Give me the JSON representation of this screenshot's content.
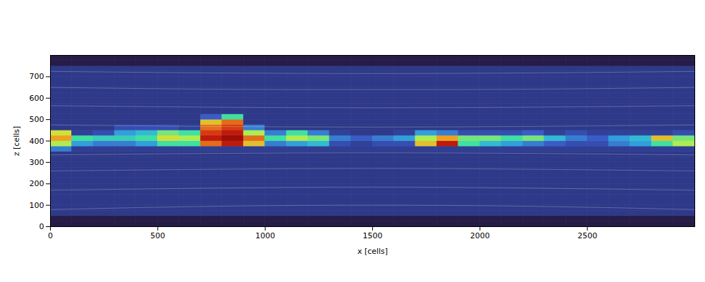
{
  "chart_data": {
    "type": "heatmap",
    "xlabel": "x [cells]",
    "ylabel": "z [cells]",
    "xlim": [
      0,
      3000
    ],
    "ylim": [
      0,
      800
    ],
    "xticks": [
      0,
      500,
      1000,
      1500,
      2000,
      2500
    ],
    "yticks": [
      0,
      100,
      200,
      300,
      400,
      500,
      600,
      700
    ],
    "color_range": [
      0,
      1
    ],
    "x_edges": [
      0,
      100,
      200,
      300,
      400,
      500,
      600,
      700,
      800,
      900,
      1000,
      1100,
      1200,
      1300,
      1400,
      1500,
      1600,
      1700,
      1800,
      1900,
      2000,
      2100,
      2200,
      2300,
      2400,
      2500,
      2600,
      2700,
      2800,
      2900,
      3000
    ],
    "z_edges": [
      0,
      25,
      50,
      75,
      100,
      125,
      150,
      175,
      200,
      225,
      250,
      275,
      300,
      325,
      350,
      375,
      400,
      425,
      450,
      475,
      500,
      525,
      550,
      575,
      600,
      625,
      650,
      675,
      700,
      725,
      750,
      775,
      800
    ],
    "cells": [
      [
        0.02,
        0.02,
        0.02,
        0.02,
        0.02,
        0.02,
        0.02,
        0.02,
        0.02,
        0.02,
        0.02,
        0.02,
        0.02,
        0.02,
        0.02,
        0.02,
        0.02,
        0.02,
        0.02,
        0.02,
        0.02,
        0.02,
        0.02,
        0.02,
        0.02,
        0.02,
        0.02,
        0.02,
        0.02,
        0.02
      ],
      [
        0.02,
        0.02,
        0.02,
        0.02,
        0.02,
        0.02,
        0.02,
        0.02,
        0.02,
        0.02,
        0.02,
        0.02,
        0.02,
        0.02,
        0.02,
        0.02,
        0.02,
        0.02,
        0.02,
        0.02,
        0.02,
        0.02,
        0.02,
        0.02,
        0.02,
        0.02,
        0.02,
        0.02,
        0.02,
        0.02
      ],
      [
        0.12,
        0.12,
        0.12,
        0.12,
        0.12,
        0.12,
        0.12,
        0.12,
        0.12,
        0.12,
        0.12,
        0.12,
        0.12,
        0.12,
        0.12,
        0.12,
        0.12,
        0.12,
        0.12,
        0.12,
        0.12,
        0.12,
        0.12,
        0.12,
        0.12,
        0.12,
        0.12,
        0.12,
        0.12,
        0.12
      ],
      [
        0.12,
        0.12,
        0.12,
        0.12,
        0.12,
        0.12,
        0.12,
        0.12,
        0.12,
        0.12,
        0.12,
        0.12,
        0.12,
        0.12,
        0.12,
        0.12,
        0.12,
        0.12,
        0.12,
        0.12,
        0.12,
        0.12,
        0.12,
        0.12,
        0.12,
        0.12,
        0.12,
        0.12,
        0.12,
        0.12
      ],
      [
        0.12,
        0.12,
        0.12,
        0.12,
        0.12,
        0.12,
        0.12,
        0.12,
        0.12,
        0.12,
        0.12,
        0.12,
        0.12,
        0.12,
        0.12,
        0.12,
        0.12,
        0.12,
        0.12,
        0.12,
        0.12,
        0.12,
        0.12,
        0.12,
        0.12,
        0.12,
        0.12,
        0.12,
        0.12,
        0.12
      ],
      [
        0.12,
        0.12,
        0.12,
        0.12,
        0.12,
        0.12,
        0.12,
        0.12,
        0.12,
        0.12,
        0.12,
        0.12,
        0.12,
        0.12,
        0.12,
        0.12,
        0.12,
        0.12,
        0.12,
        0.12,
        0.12,
        0.12,
        0.12,
        0.12,
        0.12,
        0.12,
        0.12,
        0.12,
        0.12,
        0.12
      ],
      [
        0.12,
        0.12,
        0.12,
        0.12,
        0.12,
        0.12,
        0.12,
        0.12,
        0.12,
        0.12,
        0.12,
        0.12,
        0.12,
        0.12,
        0.12,
        0.12,
        0.12,
        0.12,
        0.12,
        0.12,
        0.12,
        0.12,
        0.12,
        0.12,
        0.12,
        0.12,
        0.12,
        0.12,
        0.12,
        0.12
      ],
      [
        0.12,
        0.12,
        0.12,
        0.12,
        0.12,
        0.12,
        0.12,
        0.12,
        0.12,
        0.12,
        0.12,
        0.12,
        0.12,
        0.12,
        0.12,
        0.12,
        0.12,
        0.12,
        0.12,
        0.12,
        0.12,
        0.12,
        0.12,
        0.12,
        0.12,
        0.12,
        0.12,
        0.12,
        0.12,
        0.12
      ],
      [
        0.12,
        0.12,
        0.12,
        0.12,
        0.12,
        0.12,
        0.12,
        0.12,
        0.12,
        0.12,
        0.12,
        0.12,
        0.12,
        0.12,
        0.12,
        0.12,
        0.12,
        0.12,
        0.12,
        0.12,
        0.12,
        0.12,
        0.12,
        0.12,
        0.12,
        0.12,
        0.12,
        0.12,
        0.12,
        0.12
      ],
      [
        0.12,
        0.12,
        0.12,
        0.12,
        0.12,
        0.12,
        0.12,
        0.12,
        0.12,
        0.12,
        0.12,
        0.12,
        0.12,
        0.12,
        0.12,
        0.12,
        0.12,
        0.12,
        0.12,
        0.12,
        0.12,
        0.12,
        0.12,
        0.12,
        0.12,
        0.12,
        0.12,
        0.12,
        0.12,
        0.12
      ],
      [
        0.12,
        0.12,
        0.12,
        0.12,
        0.12,
        0.12,
        0.12,
        0.12,
        0.12,
        0.12,
        0.12,
        0.12,
        0.12,
        0.12,
        0.12,
        0.12,
        0.12,
        0.12,
        0.12,
        0.12,
        0.12,
        0.12,
        0.12,
        0.12,
        0.12,
        0.12,
        0.12,
        0.12,
        0.12,
        0.12
      ],
      [
        0.12,
        0.12,
        0.12,
        0.12,
        0.12,
        0.12,
        0.12,
        0.12,
        0.12,
        0.12,
        0.12,
        0.12,
        0.12,
        0.12,
        0.12,
        0.12,
        0.12,
        0.12,
        0.12,
        0.12,
        0.12,
        0.12,
        0.12,
        0.12,
        0.12,
        0.12,
        0.12,
        0.12,
        0.12,
        0.12
      ],
      [
        0.12,
        0.12,
        0.12,
        0.12,
        0.12,
        0.12,
        0.12,
        0.12,
        0.12,
        0.12,
        0.12,
        0.12,
        0.12,
        0.12,
        0.12,
        0.12,
        0.12,
        0.12,
        0.12,
        0.12,
        0.12,
        0.12,
        0.12,
        0.12,
        0.12,
        0.12,
        0.12,
        0.12,
        0.12,
        0.12
      ],
      [
        0.12,
        0.12,
        0.12,
        0.12,
        0.12,
        0.12,
        0.12,
        0.12,
        0.12,
        0.12,
        0.12,
        0.12,
        0.12,
        0.12,
        0.12,
        0.12,
        0.12,
        0.12,
        0.12,
        0.12,
        0.12,
        0.12,
        0.12,
        0.12,
        0.12,
        0.12,
        0.12,
        0.12,
        0.12,
        0.12
      ],
      [
        0.3,
        0.14,
        0.14,
        0.14,
        0.14,
        0.14,
        0.14,
        0.14,
        0.14,
        0.14,
        0.14,
        0.14,
        0.14,
        0.14,
        0.14,
        0.14,
        0.14,
        0.14,
        0.14,
        0.14,
        0.14,
        0.14,
        0.14,
        0.14,
        0.14,
        0.14,
        0.14,
        0.14,
        0.14,
        0.14
      ],
      [
        0.6,
        0.35,
        0.3,
        0.3,
        0.35,
        0.5,
        0.5,
        0.8,
        0.9,
        0.7,
        0.3,
        0.35,
        0.4,
        0.2,
        0.15,
        0.2,
        0.2,
        0.7,
        0.9,
        0.5,
        0.4,
        0.35,
        0.3,
        0.25,
        0.2,
        0.2,
        0.3,
        0.35,
        0.5,
        0.6
      ],
      [
        0.75,
        0.5,
        0.45,
        0.45,
        0.5,
        0.65,
        0.6,
        0.9,
        0.95,
        0.8,
        0.5,
        0.6,
        0.55,
        0.3,
        0.25,
        0.3,
        0.35,
        0.6,
        0.75,
        0.55,
        0.55,
        0.5,
        0.55,
        0.4,
        0.3,
        0.25,
        0.35,
        0.4,
        0.7,
        0.55
      ],
      [
        0.65,
        0.15,
        0.2,
        0.35,
        0.4,
        0.55,
        0.5,
        0.85,
        0.9,
        0.6,
        0.3,
        0.5,
        0.3,
        0.15,
        0.12,
        0.12,
        0.15,
        0.35,
        0.3,
        0.2,
        0.2,
        0.2,
        0.25,
        0.15,
        0.2,
        0.15,
        0.15,
        0.15,
        0.15,
        0.2
      ],
      [
        0.12,
        0.12,
        0.12,
        0.2,
        0.2,
        0.2,
        0.15,
        0.8,
        0.85,
        0.3,
        0.12,
        0.12,
        0.12,
        0.12,
        0.12,
        0.12,
        0.12,
        0.12,
        0.12,
        0.12,
        0.12,
        0.12,
        0.12,
        0.12,
        0.12,
        0.12,
        0.12,
        0.12,
        0.12,
        0.12
      ],
      [
        0.12,
        0.12,
        0.12,
        0.12,
        0.12,
        0.12,
        0.12,
        0.7,
        0.8,
        0.12,
        0.12,
        0.12,
        0.12,
        0.12,
        0.12,
        0.12,
        0.12,
        0.12,
        0.12,
        0.12,
        0.12,
        0.12,
        0.12,
        0.12,
        0.12,
        0.12,
        0.12,
        0.12,
        0.12,
        0.12
      ],
      [
        0.12,
        0.12,
        0.12,
        0.12,
        0.12,
        0.12,
        0.12,
        0.25,
        0.5,
        0.12,
        0.12,
        0.12,
        0.12,
        0.12,
        0.12,
        0.12,
        0.12,
        0.12,
        0.12,
        0.12,
        0.12,
        0.12,
        0.12,
        0.12,
        0.12,
        0.12,
        0.12,
        0.12,
        0.12,
        0.12
      ],
      [
        0.12,
        0.12,
        0.12,
        0.12,
        0.12,
        0.12,
        0.12,
        0.12,
        0.12,
        0.12,
        0.12,
        0.12,
        0.12,
        0.12,
        0.12,
        0.12,
        0.12,
        0.12,
        0.12,
        0.12,
        0.12,
        0.12,
        0.12,
        0.12,
        0.12,
        0.12,
        0.12,
        0.12,
        0.12,
        0.12
      ],
      [
        0.12,
        0.12,
        0.12,
        0.12,
        0.12,
        0.12,
        0.12,
        0.12,
        0.12,
        0.12,
        0.12,
        0.12,
        0.12,
        0.12,
        0.12,
        0.12,
        0.12,
        0.12,
        0.12,
        0.12,
        0.12,
        0.12,
        0.12,
        0.12,
        0.12,
        0.12,
        0.12,
        0.12,
        0.12,
        0.12
      ],
      [
        0.12,
        0.12,
        0.12,
        0.12,
        0.12,
        0.12,
        0.12,
        0.12,
        0.12,
        0.12,
        0.12,
        0.12,
        0.12,
        0.12,
        0.12,
        0.12,
        0.12,
        0.12,
        0.12,
        0.12,
        0.12,
        0.12,
        0.12,
        0.12,
        0.12,
        0.12,
        0.12,
        0.12,
        0.12,
        0.12
      ],
      [
        0.12,
        0.12,
        0.12,
        0.12,
        0.12,
        0.12,
        0.12,
        0.12,
        0.12,
        0.12,
        0.12,
        0.12,
        0.12,
        0.12,
        0.12,
        0.12,
        0.12,
        0.12,
        0.12,
        0.12,
        0.12,
        0.12,
        0.12,
        0.12,
        0.12,
        0.12,
        0.12,
        0.12,
        0.12,
        0.12
      ],
      [
        0.12,
        0.12,
        0.12,
        0.12,
        0.12,
        0.12,
        0.12,
        0.12,
        0.12,
        0.12,
        0.12,
        0.12,
        0.12,
        0.12,
        0.12,
        0.12,
        0.12,
        0.12,
        0.12,
        0.12,
        0.12,
        0.12,
        0.12,
        0.12,
        0.12,
        0.12,
        0.12,
        0.12,
        0.12,
        0.12
      ],
      [
        0.12,
        0.12,
        0.12,
        0.12,
        0.12,
        0.12,
        0.12,
        0.12,
        0.12,
        0.12,
        0.12,
        0.12,
        0.12,
        0.12,
        0.12,
        0.12,
        0.12,
        0.12,
        0.12,
        0.12,
        0.12,
        0.12,
        0.12,
        0.12,
        0.12,
        0.12,
        0.12,
        0.12,
        0.12,
        0.12
      ],
      [
        0.12,
        0.12,
        0.12,
        0.12,
        0.12,
        0.12,
        0.12,
        0.12,
        0.12,
        0.12,
        0.12,
        0.12,
        0.12,
        0.12,
        0.12,
        0.12,
        0.12,
        0.12,
        0.12,
        0.12,
        0.12,
        0.12,
        0.12,
        0.12,
        0.12,
        0.12,
        0.12,
        0.12,
        0.12,
        0.12
      ],
      [
        0.12,
        0.12,
        0.12,
        0.12,
        0.12,
        0.12,
        0.12,
        0.12,
        0.12,
        0.12,
        0.12,
        0.12,
        0.12,
        0.12,
        0.12,
        0.12,
        0.12,
        0.12,
        0.12,
        0.12,
        0.12,
        0.12,
        0.12,
        0.12,
        0.12,
        0.12,
        0.12,
        0.12,
        0.12,
        0.12
      ],
      [
        0.12,
        0.12,
        0.12,
        0.12,
        0.12,
        0.12,
        0.12,
        0.12,
        0.12,
        0.12,
        0.12,
        0.12,
        0.12,
        0.12,
        0.12,
        0.12,
        0.12,
        0.12,
        0.12,
        0.12,
        0.12,
        0.12,
        0.12,
        0.12,
        0.12,
        0.12,
        0.12,
        0.12,
        0.12,
        0.12
      ],
      [
        0.02,
        0.02,
        0.02,
        0.02,
        0.02,
        0.02,
        0.02,
        0.02,
        0.02,
        0.02,
        0.02,
        0.02,
        0.02,
        0.02,
        0.02,
        0.02,
        0.02,
        0.02,
        0.02,
        0.02,
        0.02,
        0.02,
        0.02,
        0.02,
        0.02,
        0.02,
        0.02,
        0.02,
        0.02,
        0.02
      ],
      [
        0.02,
        0.02,
        0.02,
        0.02,
        0.02,
        0.02,
        0.02,
        0.02,
        0.02,
        0.02,
        0.02,
        0.02,
        0.02,
        0.02,
        0.02,
        0.02,
        0.02,
        0.02,
        0.02,
        0.02,
        0.02,
        0.02,
        0.02,
        0.02,
        0.02,
        0.02,
        0.02,
        0.02,
        0.02,
        0.02
      ]
    ],
    "field_lines": [
      {
        "x": [
          0,
          750,
          1500,
          2250,
          3000
        ],
        "z": [
          80,
          95,
          100,
          95,
          80
        ]
      },
      {
        "x": [
          0,
          750,
          1500,
          2250,
          3000
        ],
        "z": [
          170,
          180,
          185,
          180,
          170
        ]
      },
      {
        "x": [
          0,
          750,
          1500,
          2250,
          3000
        ],
        "z": [
          260,
          268,
          272,
          268,
          260
        ]
      },
      {
        "x": [
          0,
          750,
          1500,
          2250,
          3000
        ],
        "z": [
          335,
          342,
          345,
          342,
          335
        ]
      },
      {
        "x": [
          0,
          750,
          1500,
          2250,
          3000
        ],
        "z": [
          475,
          468,
          465,
          468,
          475
        ]
      },
      {
        "x": [
          0,
          750,
          1500,
          2250,
          3000
        ],
        "z": [
          565,
          558,
          555,
          558,
          565
        ]
      },
      {
        "x": [
          0,
          750,
          1500,
          2250,
          3000
        ],
        "z": [
          650,
          642,
          640,
          642,
          650
        ]
      },
      {
        "x": [
          0,
          750,
          1500,
          2250,
          3000
        ],
        "z": [
          725,
          718,
          715,
          718,
          725
        ]
      }
    ]
  }
}
